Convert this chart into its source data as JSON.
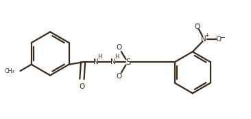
{
  "bg_color": "#ffffff",
  "line_color": "#3a2a1a",
  "line_width": 1.6,
  "figsize": [
    3.66,
    1.73
  ],
  "dpi": 100,
  "xlim": [
    0,
    10.5
  ],
  "ylim": [
    0,
    5.0
  ]
}
